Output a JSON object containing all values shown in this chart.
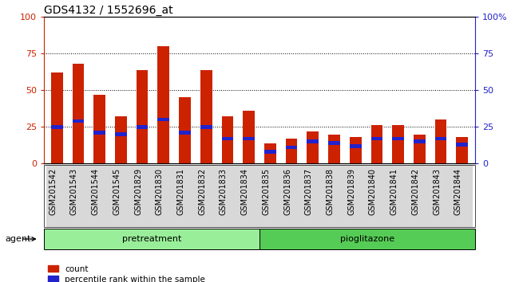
{
  "title": "GDS4132 / 1552696_at",
  "samples": [
    "GSM201542",
    "GSM201543",
    "GSM201544",
    "GSM201545",
    "GSM201829",
    "GSM201830",
    "GSM201831",
    "GSM201832",
    "GSM201833",
    "GSM201834",
    "GSM201835",
    "GSM201836",
    "GSM201837",
    "GSM201838",
    "GSM201839",
    "GSM201840",
    "GSM201841",
    "GSM201842",
    "GSM201843",
    "GSM201844"
  ],
  "counts": [
    62,
    68,
    47,
    32,
    64,
    80,
    45,
    64,
    32,
    36,
    14,
    17,
    22,
    20,
    18,
    26,
    26,
    20,
    30,
    18
  ],
  "percentiles": [
    25,
    29,
    21,
    20,
    25,
    30,
    21,
    25,
    17,
    17,
    8,
    11,
    15,
    14,
    12,
    17,
    17,
    15,
    17,
    13
  ],
  "pretreatment_count": 10,
  "pioglitazone_count": 10,
  "bar_color": "#cc2200",
  "percentile_color": "#2222cc",
  "pretreatment_color": "#99ee99",
  "pioglitazone_color": "#55cc55",
  "group_label_pretreatment": "pretreatment",
  "group_label_pioglitazone": "pioglitazone",
  "agent_label": "agent",
  "legend_count": "count",
  "legend_percentile": "percentile rank within the sample",
  "ylim": [
    0,
    100
  ],
  "yticks": [
    0,
    25,
    50,
    75,
    100
  ],
  "title_fontsize": 10,
  "tick_fontsize": 7,
  "bar_width": 0.55,
  "xtick_bg": "#d8d8d8"
}
